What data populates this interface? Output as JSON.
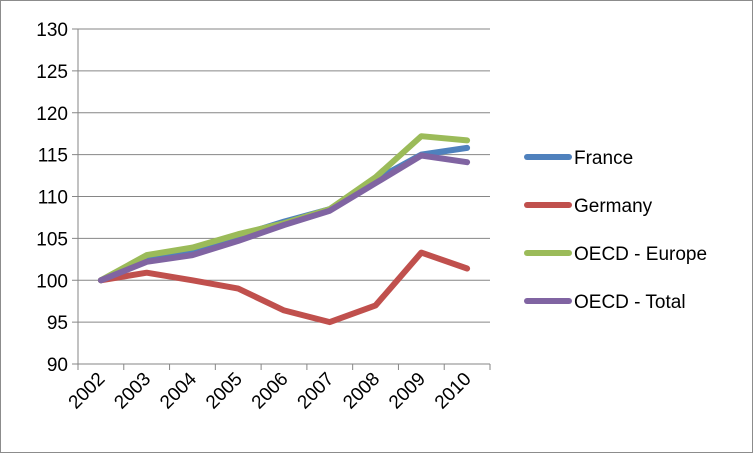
{
  "chart_data": {
    "type": "line",
    "title": "",
    "xlabel": "",
    "ylabel": "",
    "ylim": [
      90,
      130
    ],
    "y_ticks": [
      "90",
      "95",
      "100",
      "105",
      "110",
      "115",
      "120",
      "125",
      "130"
    ],
    "categories": [
      "2002",
      "2003",
      "2004",
      "2005",
      "2006",
      "2007",
      "2008",
      "2009",
      "2010"
    ],
    "grid": "horizontal",
    "legend": "right",
    "series": [
      {
        "name": "France",
        "color": "#4f81bd",
        "values": [
          100,
          102.5,
          103.5,
          105.3,
          107,
          108.5,
          112,
          115,
          115.8
        ]
      },
      {
        "name": "Germany",
        "color": "#c0504d",
        "values": [
          100,
          100.9,
          100,
          99,
          96.4,
          95,
          97,
          103.3,
          101.4
        ]
      },
      {
        "name": "OECD - Europe",
        "color": "#9bbb59",
        "values": [
          100,
          103,
          103.9,
          105.5,
          106.8,
          108.5,
          112.3,
          117.2,
          116.7
        ]
      },
      {
        "name": "OECD - Total",
        "color": "#8064a2",
        "values": [
          100,
          102.2,
          103,
          104.7,
          106.6,
          108.3,
          111.6,
          114.9,
          114.1
        ]
      }
    ]
  }
}
